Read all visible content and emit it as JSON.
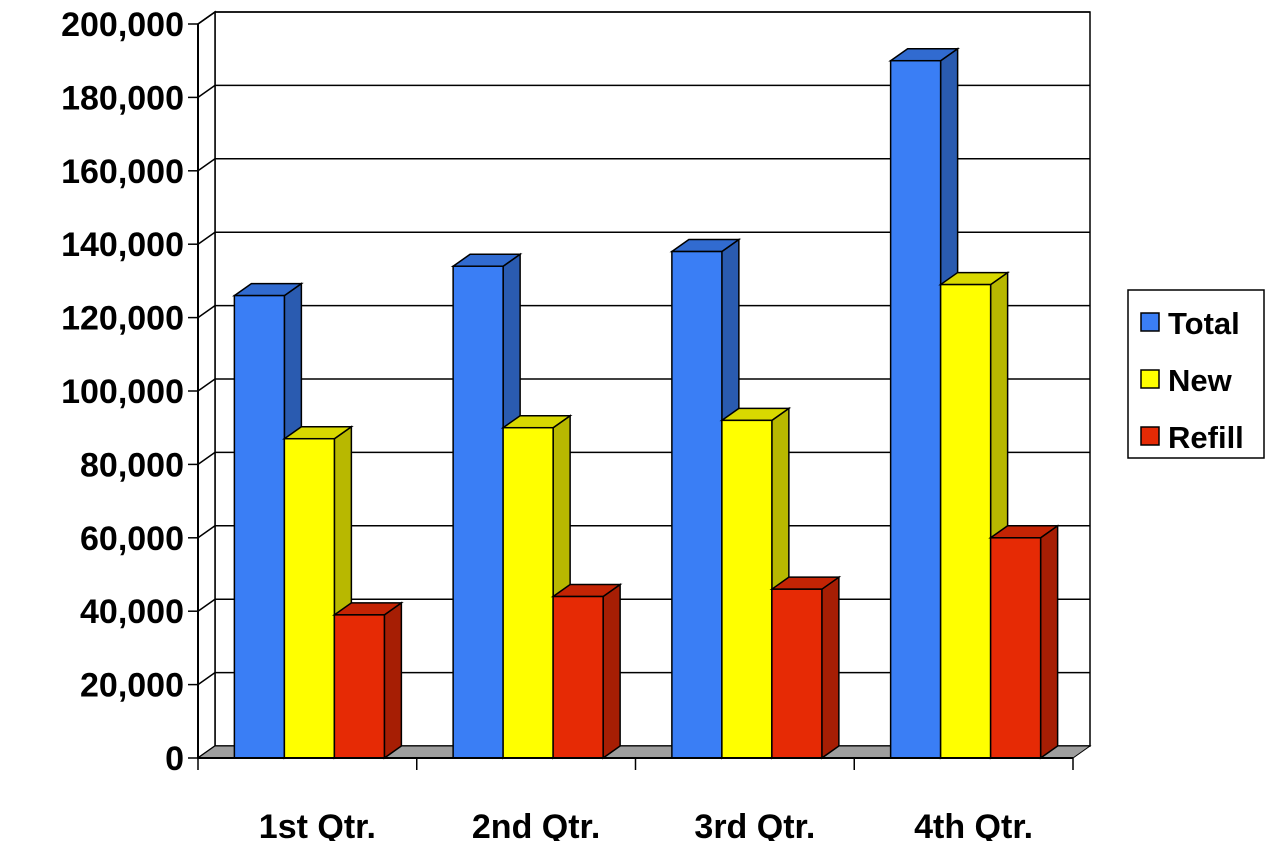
{
  "chart_data": {
    "type": "bar",
    "bar_style": "3d-clustered",
    "categories": [
      "1st Qtr.",
      "2nd Qtr.",
      "3rd Qtr.",
      "4th Qtr."
    ],
    "series": [
      {
        "name": "Total",
        "color": "#3a7ef5",
        "values": [
          126000,
          134000,
          138000,
          190000
        ]
      },
      {
        "name": "New",
        "color": "#ffff00",
        "values": [
          87000,
          90000,
          92000,
          129000
        ]
      },
      {
        "name": "Refill",
        "color": "#e62a05",
        "values": [
          39000,
          44000,
          46000,
          60000
        ]
      }
    ],
    "y_ticks": [
      "0",
      "20,000",
      "40,000",
      "60,000",
      "80,000",
      "100,000",
      "120,000",
      "140,000",
      "160,000",
      "180,000",
      "200,000"
    ],
    "ylim": [
      0,
      200000
    ],
    "grid": true,
    "legend": "right",
    "title": "",
    "xlabel": "",
    "ylabel": ""
  }
}
